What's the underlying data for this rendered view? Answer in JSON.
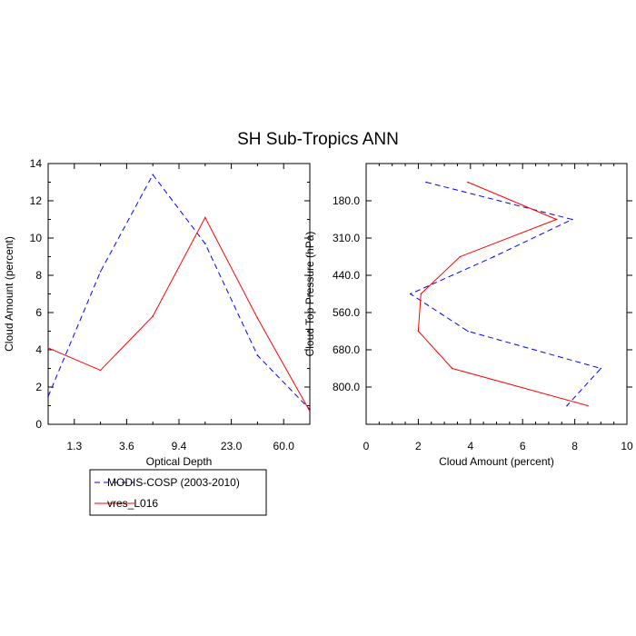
{
  "page_title": "SH Sub-Tropics ANN",
  "colors": {
    "modis": "#0000ff",
    "model": "#ff0000"
  },
  "legend": [
    "MODIS-COSP (2003-2010)",
    "vres_L016"
  ],
  "chart_data": [
    {
      "type": "line",
      "xlabel": "Optical Depth",
      "ylabel": "Cloud Amount (percent)",
      "x_index": [
        0,
        1,
        2,
        3,
        4,
        5
      ],
      "xlim_index": [
        0,
        5
      ],
      "xtick_labels": [
        "1.3",
        "3.6",
        "9.4",
        "23.0",
        "60.0"
      ],
      "ylim": [
        0,
        14
      ],
      "yticks": [
        0,
        2,
        4,
        6,
        8,
        10,
        12,
        14
      ],
      "series": [
        {
          "name": "MODIS-COSP (2003-2010)",
          "values": [
            1.5,
            8.2,
            13.4,
            9.7,
            3.7,
            0.8
          ]
        },
        {
          "name": "vres_L016",
          "values": [
            4.1,
            2.9,
            5.8,
            11.1,
            5.7,
            0.7
          ]
        }
      ]
    },
    {
      "type": "line",
      "xlabel": "Cloud Amount (percent)",
      "ylabel": "Cloud Top Pressure (hPa)",
      "xlim": [
        0,
        10
      ],
      "xticks": [
        0,
        2,
        4,
        6,
        8,
        10
      ],
      "y_index": [
        0,
        1,
        2,
        3,
        4,
        5,
        6
      ],
      "ylim_index": [
        -0.5,
        6.5
      ],
      "ytick_labels": [
        "180.0",
        "310.0",
        "440.0",
        "560.0",
        "680.0",
        "800.0"
      ],
      "series": [
        {
          "name": "MODIS-COSP (2003-2010)",
          "values": [
            2.3,
            7.9,
            4.9,
            1.7,
            3.9,
            9.0,
            7.7
          ]
        },
        {
          "name": "vres_L016",
          "values": [
            3.9,
            7.3,
            3.6,
            2.1,
            2.0,
            3.3,
            8.5
          ]
        }
      ]
    }
  ]
}
